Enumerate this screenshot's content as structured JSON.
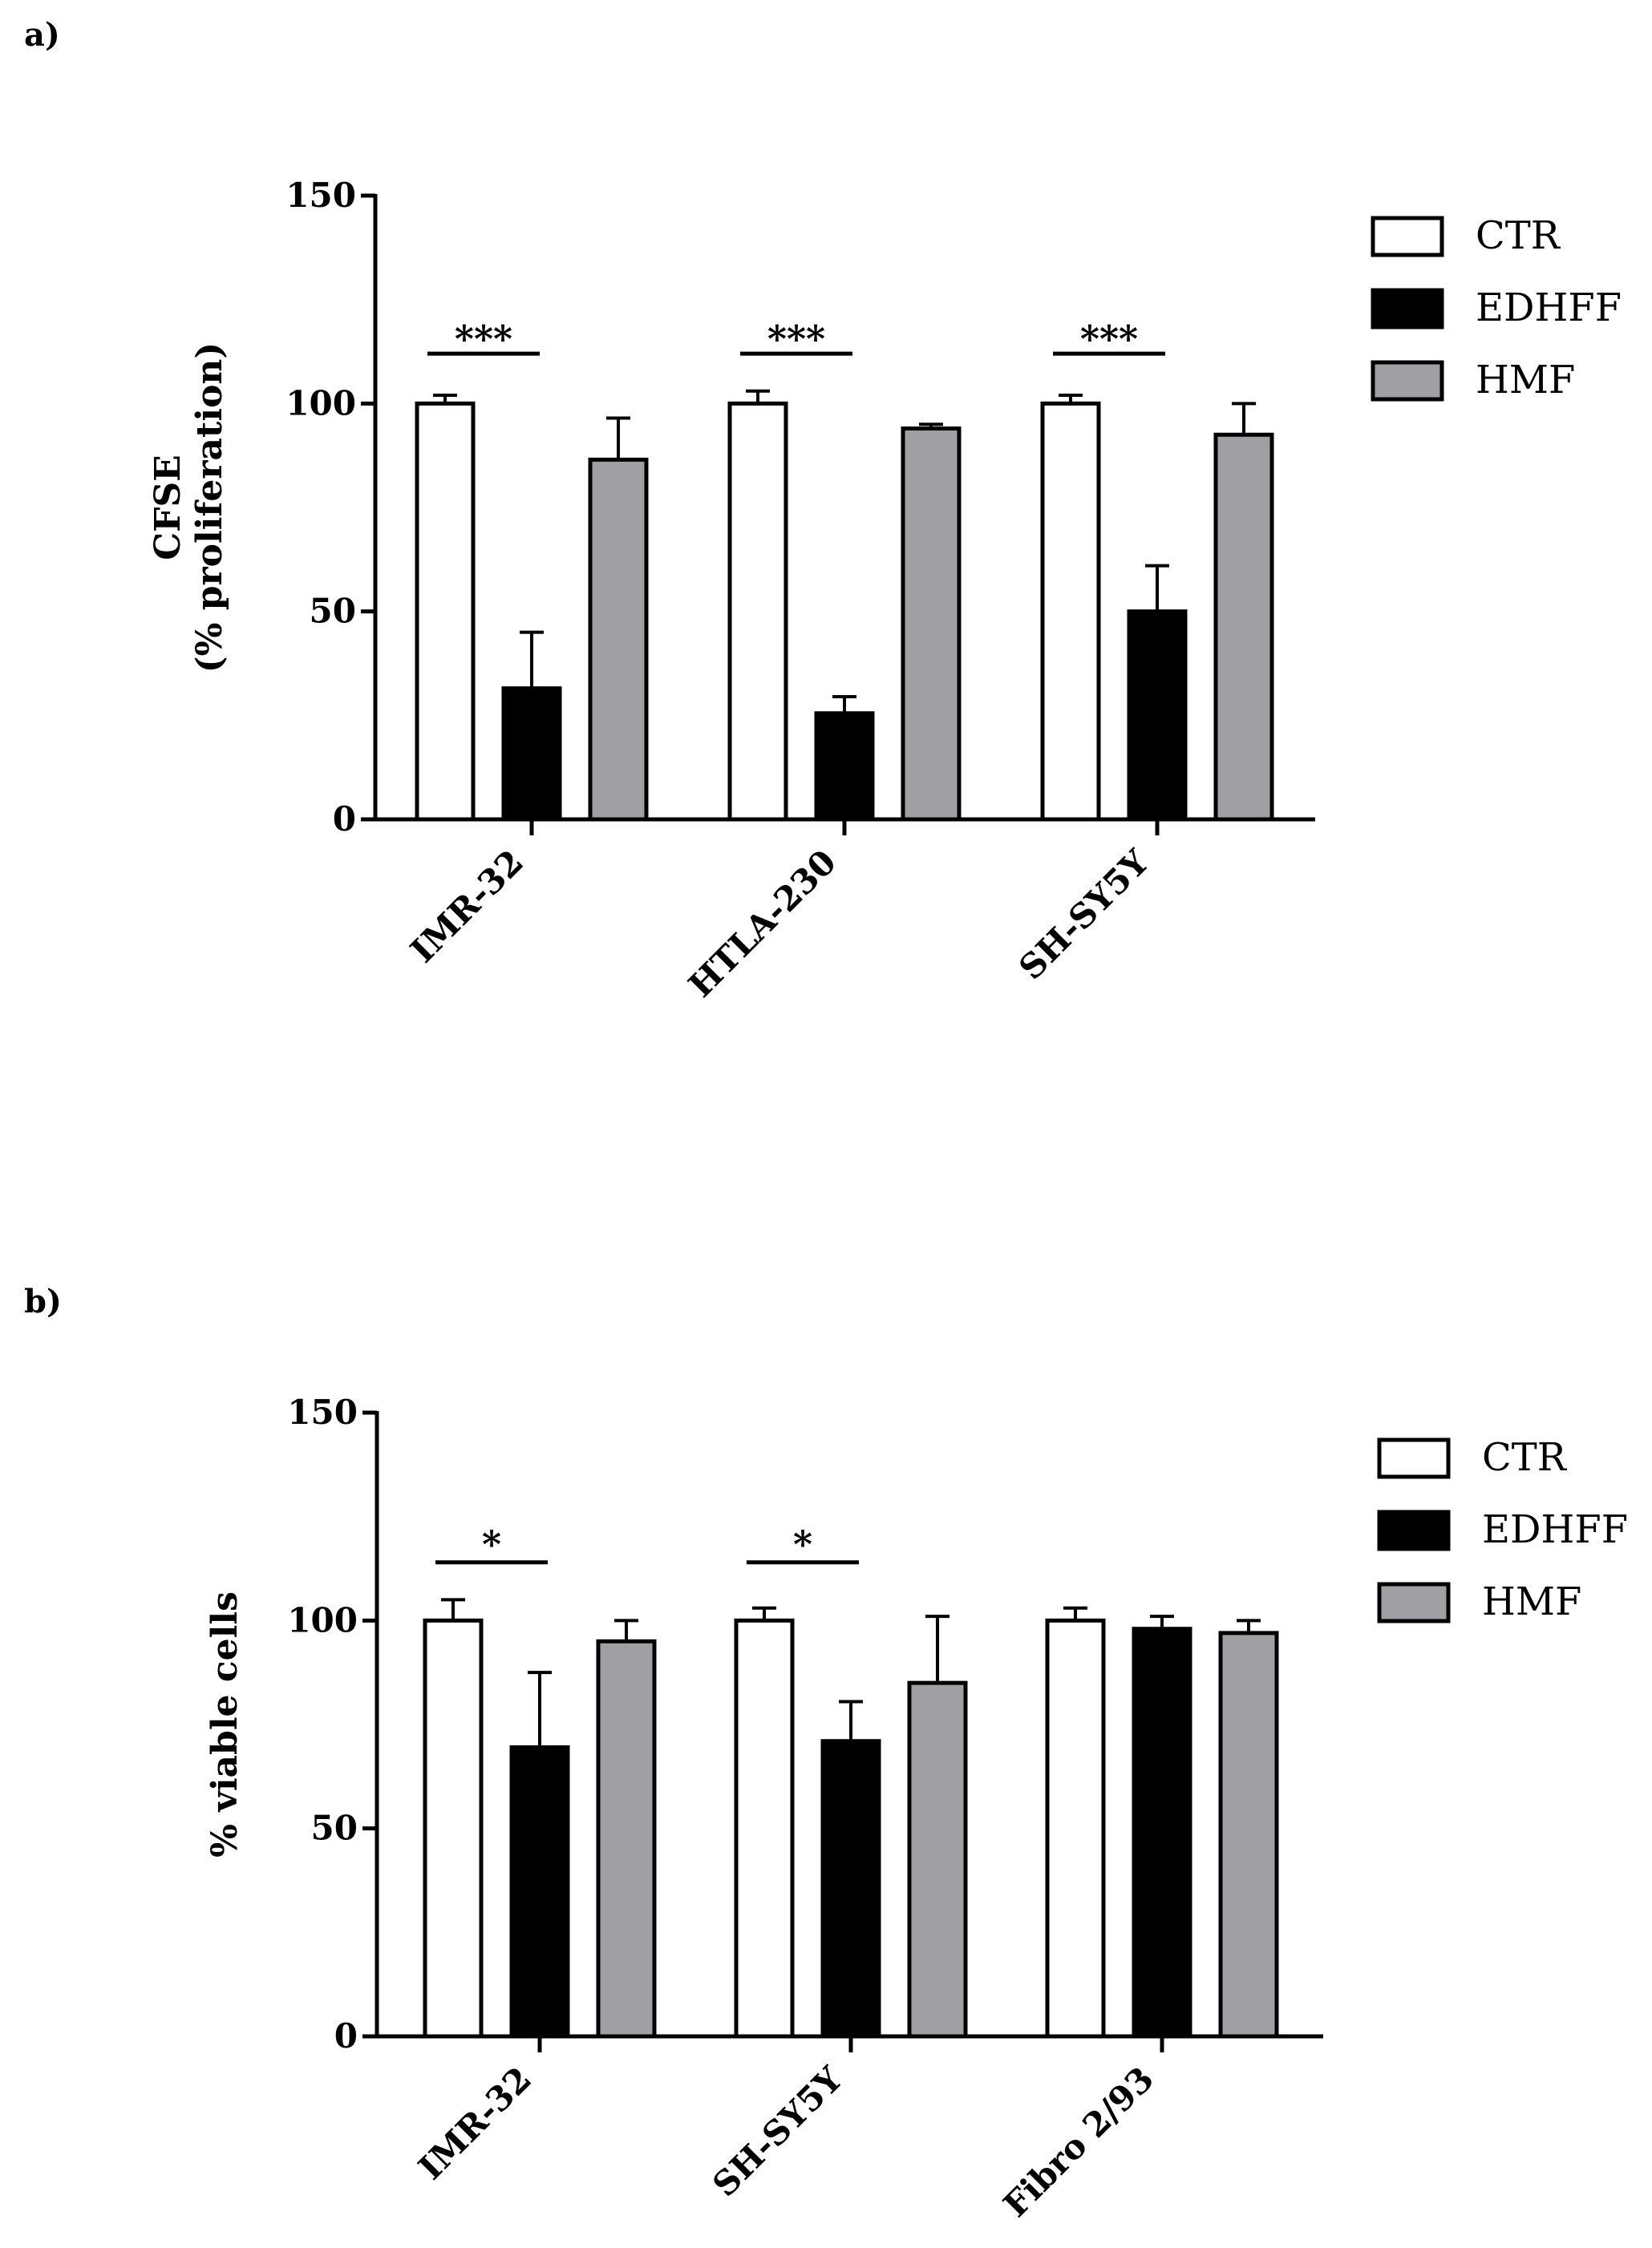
{
  "panels": [
    {
      "label": "a)",
      "axis_title_lines": [
        "CFSE",
        "(% proliferation)"
      ]
    },
    {
      "label": "b)",
      "axis_title_lines": [
        "% viable cells"
      ]
    }
  ],
  "chart_data": [
    {
      "type": "bar",
      "panel": "a)",
      "title": "",
      "xlabel": "",
      "ylabel": "CFSE (% proliferation)",
      "ylim": [
        0,
        150
      ],
      "yticks": [
        0,
        50,
        100,
        150
      ],
      "categories": [
        "IMR-32",
        "HTLA-230",
        "SH-SY5Y"
      ],
      "series": [
        {
          "name": "CTR",
          "color": "#ffffff",
          "values": [
            100,
            100,
            100
          ],
          "errors": [
            2,
            3,
            2
          ]
        },
        {
          "name": "EDHFF",
          "color": "#000000",
          "values": [
            31.5,
            25.5,
            50
          ],
          "errors": [
            13.5,
            4,
            11
          ]
        },
        {
          "name": "HMF",
          "color": "#a0a0a4",
          "values": [
            86.5,
            94,
            92.5
          ],
          "errors": [
            10,
            1,
            7.5
          ]
        }
      ],
      "significance": [
        {
          "category": "IMR-32",
          "between": [
            "CTR",
            "EDHFF"
          ],
          "text": "***",
          "y": 112
        },
        {
          "category": "HTLA-230",
          "between": [
            "CTR",
            "EDHFF"
          ],
          "text": "***",
          "y": 112
        },
        {
          "category": "SH-SY5Y",
          "between": [
            "CTR",
            "EDHFF"
          ],
          "text": "***",
          "y": 112
        }
      ],
      "legend": [
        "CTR",
        "EDHFF",
        "HMF"
      ],
      "legend_position": "top-right",
      "grid": false
    },
    {
      "type": "bar",
      "panel": "b)",
      "title": "",
      "xlabel": "",
      "ylabel": "% viable cells",
      "ylim": [
        0,
        150
      ],
      "yticks": [
        0,
        50,
        100,
        150
      ],
      "categories": [
        "IMR-32",
        "SH-SY5Y",
        "Fibro 2/93"
      ],
      "series": [
        {
          "name": "CTR",
          "color": "#ffffff",
          "values": [
            100,
            100,
            100
          ],
          "errors": [
            5,
            3,
            3
          ]
        },
        {
          "name": "EDHFF",
          "color": "#000000",
          "values": [
            69.5,
            71,
            98
          ],
          "errors": [
            18,
            9.5,
            3
          ]
        },
        {
          "name": "HMF",
          "color": "#a0a0a4",
          "values": [
            95,
            85,
            97
          ],
          "errors": [
            5,
            16,
            3
          ]
        }
      ],
      "significance": [
        {
          "category": "IMR-32",
          "between": [
            "CTR",
            "EDHFF"
          ],
          "text": "*",
          "y": 114
        },
        {
          "category": "SH-SY5Y",
          "between": [
            "CTR",
            "EDHFF"
          ],
          "text": "*",
          "y": 114
        }
      ],
      "legend": [
        "CTR",
        "EDHFF",
        "HMF"
      ],
      "legend_position": "top-right",
      "grid": false
    }
  ]
}
